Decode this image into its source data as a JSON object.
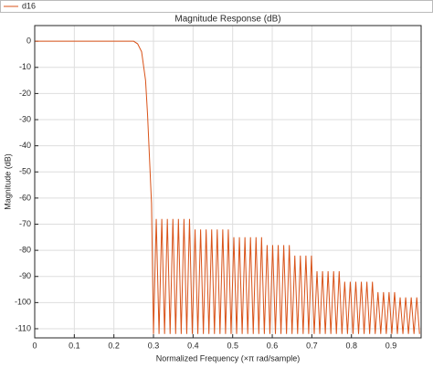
{
  "chart_data": {
    "type": "line",
    "title": "Magnitude Response (dB)",
    "x_label": "Normalized Frequency (×π rad/sample)",
    "y_label": "Magnitude (dB)",
    "x": [
      0,
      0.25,
      0.26,
      0.27,
      0.28,
      0.285,
      0.29,
      0.295,
      0.3,
      0.307,
      0.314,
      0.321,
      0.328,
      0.335,
      0.342,
      0.349,
      0.356,
      0.363,
      0.37,
      0.377,
      0.384,
      0.391,
      0.398,
      0.405,
      0.412,
      0.419,
      0.426,
      0.433,
      0.44,
      0.447,
      0.454,
      0.461,
      0.468,
      0.475,
      0.482,
      0.489,
      0.496,
      0.503,
      0.51,
      0.517,
      0.524,
      0.531,
      0.538,
      0.545,
      0.552,
      0.559,
      0.566,
      0.573,
      0.58,
      0.587,
      0.594,
      0.601,
      0.608,
      0.615,
      0.622,
      0.629,
      0.636,
      0.643,
      0.65,
      0.657,
      0.664,
      0.671,
      0.678,
      0.685,
      0.692,
      0.699,
      0.706,
      0.713,
      0.72,
      0.727,
      0.734,
      0.741,
      0.748,
      0.755,
      0.762,
      0.769,
      0.776,
      0.783,
      0.79,
      0.797,
      0.804,
      0.811,
      0.818,
      0.825,
      0.832,
      0.839,
      0.846,
      0.853,
      0.86,
      0.867,
      0.874,
      0.881,
      0.888,
      0.895,
      0.902,
      0.909,
      0.916,
      0.923,
      0.93,
      0.937,
      0.944,
      0.951,
      0.958,
      0.965,
      0.972
    ],
    "series": [
      {
        "name": "d16",
        "color": "#d95319",
        "values": [
          0,
          0,
          -1,
          -4,
          -15,
          -28,
          -45,
          -62,
          -112,
          -68,
          -112,
          -68,
          -112,
          -68,
          -112,
          -68,
          -112,
          -68,
          -112,
          -68,
          -112,
          -68,
          -112,
          -72,
          -112,
          -72,
          -112,
          -72,
          -112,
          -72,
          -112,
          -72,
          -112,
          -72,
          -112,
          -72,
          -112,
          -75,
          -112,
          -75,
          -112,
          -75,
          -112,
          -75,
          -112,
          -75,
          -112,
          -75,
          -112,
          -78,
          -112,
          -78,
          -112,
          -78,
          -112,
          -78,
          -112,
          -78,
          -112,
          -82,
          -112,
          -82,
          -112,
          -82,
          -112,
          -82,
          -112,
          -88,
          -112,
          -88,
          -112,
          -88,
          -112,
          -88,
          -112,
          -88,
          -112,
          -92,
          -112,
          -92,
          -112,
          -92,
          -112,
          -92,
          -112,
          -92,
          -112,
          -92,
          -112,
          -96,
          -112,
          -96,
          -112,
          -96,
          -112,
          -96,
          -112,
          -98,
          -112,
          -98,
          -112,
          -98,
          -112,
          -98,
          -112
        ]
      }
    ],
    "xlim": [
      0,
      0.976
    ],
    "ylim": [
      -113.5,
      6
    ],
    "xticks": [
      0,
      0.1,
      0.2,
      0.3,
      0.4,
      0.5,
      0.6,
      0.7,
      0.8,
      0.9
    ],
    "yticks": [
      0,
      -10,
      -20,
      -30,
      -40,
      -50,
      -60,
      -70,
      -80,
      -90,
      -100,
      -110
    ],
    "grid": true,
    "legend": "top-left"
  }
}
